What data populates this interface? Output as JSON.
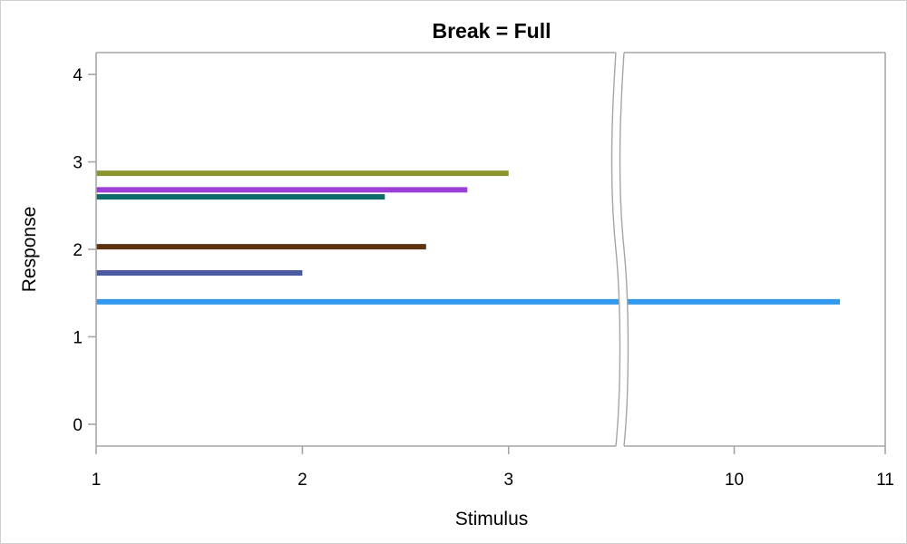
{
  "chart_data": {
    "type": "bar",
    "orientation": "horizontal",
    "title": "Break = Full",
    "xlabel": "Stimulus",
    "ylabel": "Response",
    "x_axis_break": {
      "style": "full",
      "between": [
        3,
        10
      ]
    },
    "x_segments": [
      {
        "range": [
          1,
          3.52
        ],
        "ticks": [
          1,
          2,
          3
        ]
      },
      {
        "range": [
          9.27,
          11
        ],
        "ticks": [
          10,
          11
        ]
      }
    ],
    "ylim": [
      -0.25,
      4.25
    ],
    "yticks": [
      0,
      1,
      2,
      3,
      4
    ],
    "x_base": 1,
    "series": [
      {
        "color": "#3399ee",
        "y": 1.4,
        "x_end": 10.7
      },
      {
        "color": "#4a5aa0",
        "y": 1.73,
        "x_end": 2.0
      },
      {
        "color": "#5c3310",
        "y": 2.03,
        "x_end": 2.6
      },
      {
        "color": "#0f6a6a",
        "y": 2.6,
        "x_end": 2.4
      },
      {
        "color": "#9b3fd6",
        "y": 2.68,
        "x_end": 2.8
      },
      {
        "color": "#8a9530",
        "y": 2.87,
        "x_end": 3.0
      }
    ]
  }
}
